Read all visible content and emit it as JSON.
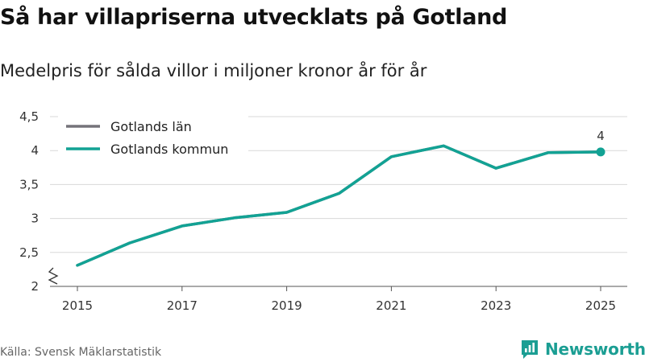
{
  "header": {
    "title": "Så har villapriserna utvecklats på Gotland",
    "subtitle": "Medelpris för sålda villor i miljoner kronor år för år"
  },
  "footer": {
    "source": "Källa: Svensk Mäklarstatistik",
    "brand": "Newsworthy"
  },
  "colors": {
    "lan": "#75737a",
    "kommun": "#12a294",
    "grid": "#d8d8d8",
    "brand": "#1b9e93"
  },
  "chart_data": {
    "type": "line",
    "title": "Så har villapriserna utvecklats på Gotland",
    "subtitle": "Medelpris för sålda villor i miljoner kronor år för år",
    "xlabel": "",
    "ylabel": "",
    "x": [
      2015,
      2016,
      2017,
      2018,
      2019,
      2020,
      2021,
      2022,
      2023,
      2024,
      2025
    ],
    "x_tick_values": [
      2015,
      2017,
      2019,
      2021,
      2023,
      2025
    ],
    "x_tick_labels": [
      "2015",
      "2017",
      "2019",
      "2021",
      "2023",
      "2025"
    ],
    "ylim": [
      2,
      4.5
    ],
    "y_tick_values": [
      2,
      2.5,
      3,
      3.5,
      4,
      4.5
    ],
    "y_tick_labels": [
      "2",
      "2,5",
      "3",
      "3,5",
      "4",
      "4,5"
    ],
    "y_axis_break": true,
    "grid": true,
    "legend_position": "top-left",
    "series": [
      {
        "name": "Gotlands län",
        "values": [
          2.31,
          2.64,
          2.89,
          3.01,
          3.09,
          3.37,
          3.91,
          4.07,
          3.74,
          3.97,
          3.98
        ]
      },
      {
        "name": "Gotlands kommun",
        "values": [
          2.31,
          2.64,
          2.89,
          3.01,
          3.09,
          3.37,
          3.91,
          4.07,
          3.74,
          3.97,
          3.98
        ]
      }
    ],
    "annotations": [
      {
        "x": 2025,
        "y": 3.98,
        "text": "4"
      }
    ]
  }
}
